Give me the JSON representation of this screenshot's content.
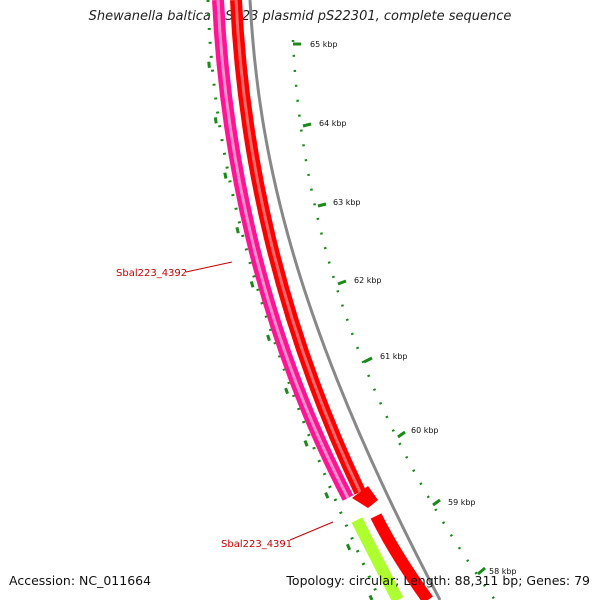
{
  "title": "Shewanella baltica OS223 plasmid pS22301, complete sequence",
  "footer": {
    "accession": "Accession: NC_011664",
    "summary": "Topology: circular; Length: 88,311 bp; Genes: 79"
  },
  "colors": {
    "backbone": "#888888",
    "forward_cds": "#ff0000",
    "reverse_cds": "#ff1493",
    "other_cds": "#adff2f",
    "ticks": "#1a8a1a",
    "label": "#cc0000"
  },
  "ruler": [
    {
      "label": "65 kbp"
    },
    {
      "label": "64 kbp"
    },
    {
      "label": "63 kbp"
    },
    {
      "label": "62 kbp"
    },
    {
      "label": "61 kbp"
    },
    {
      "label": "60 kbp"
    },
    {
      "label": "59 kbp"
    },
    {
      "label": "58 kbp"
    }
  ],
  "gene_labels": [
    {
      "label": "Sbal223_4392"
    },
    {
      "label": "Sbal223_4391"
    }
  ]
}
